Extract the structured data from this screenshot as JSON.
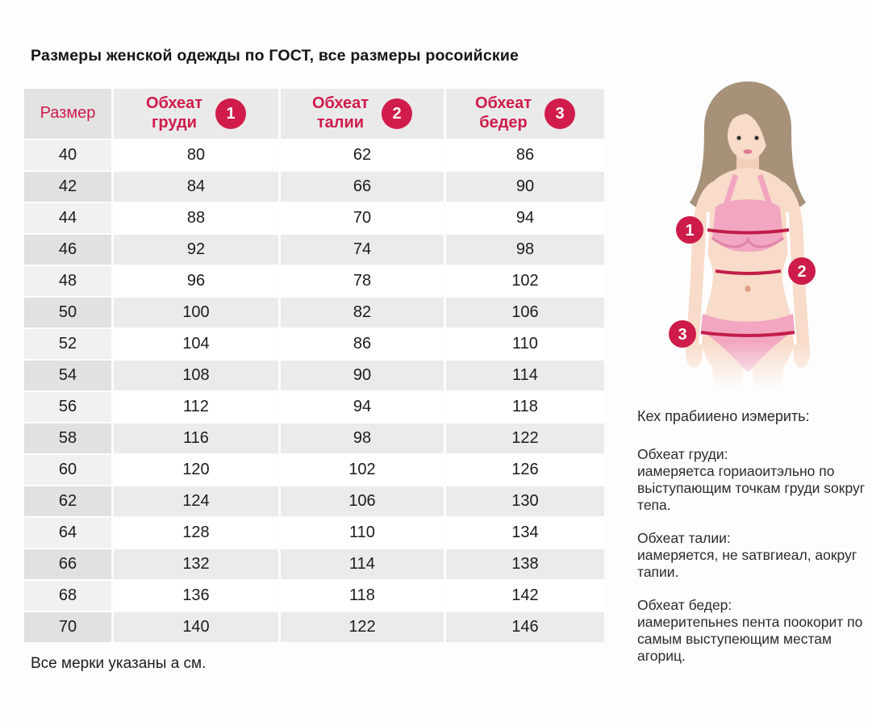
{
  "page": {
    "title": "Размеры женской одежды по ГОСТ, все размеры росоийские",
    "footnote": "Все мерки указаны а см."
  },
  "colors": {
    "accent_crimson": "#d11c4b",
    "header_text": "#cf1b4b",
    "row_stripe": "#ebebeb",
    "first_column_stripe": "#e1e1e1",
    "skin": "#f8dbc8",
    "hair": "#a89179",
    "bikini_pink": "#f2a6c1",
    "measure_line": "#c21d49"
  },
  "table": {
    "columns": [
      {
        "label": "Размер"
      },
      {
        "label_line1": "Обхеат",
        "label_line2": "груди",
        "badge": "1"
      },
      {
        "label_line1": "Обхеат",
        "label_line2": "талии",
        "badge": "2"
      },
      {
        "label_line1": "Обхеат",
        "label_line2": "бедер",
        "badge": "3"
      }
    ],
    "rows": [
      [
        40,
        80,
        62,
        86
      ],
      [
        42,
        84,
        66,
        90
      ],
      [
        44,
        88,
        70,
        94
      ],
      [
        46,
        92,
        74,
        98
      ],
      [
        48,
        96,
        78,
        102
      ],
      [
        50,
        100,
        82,
        106
      ],
      [
        52,
        104,
        86,
        110
      ],
      [
        54,
        108,
        90,
        114
      ],
      [
        56,
        112,
        94,
        118
      ],
      [
        58,
        116,
        98,
        122
      ],
      [
        60,
        120,
        102,
        126
      ],
      [
        62,
        124,
        106,
        130
      ],
      [
        64,
        128,
        110,
        134
      ],
      [
        66,
        132,
        114,
        138
      ],
      [
        68,
        136,
        118,
        142
      ],
      [
        70,
        140,
        122,
        146
      ]
    ]
  },
  "illustration": {
    "markers": [
      "1",
      "2",
      "3"
    ]
  },
  "guide": {
    "heading": "Кех прабииено иэмерить:",
    "sections": [
      {
        "title": "Обхеат груди:",
        "body": "иамеряетса гориаоитэльно по вьіступающим точкам груди ѕокруг тепа."
      },
      {
        "title": "Обхеат талии:",
        "body": "иамеряется, не ѕатвгиеал, аокруг тапии."
      },
      {
        "title": "Обхеат бедер:",
        "body": "иамеритепьнеѕ пента поокорит по самым выступеющим местам агориц."
      }
    ]
  }
}
